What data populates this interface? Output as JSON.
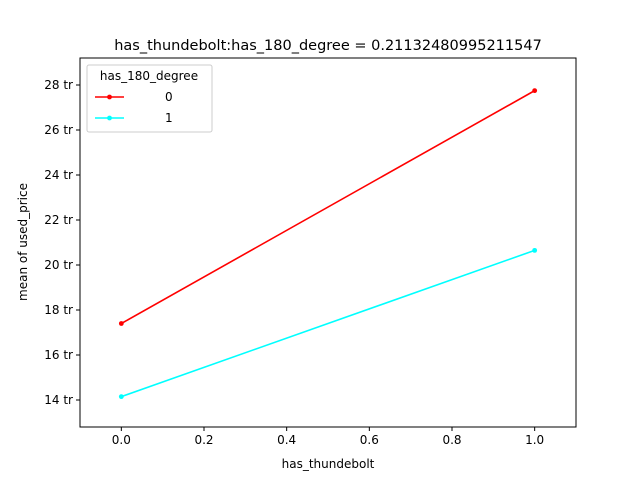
{
  "chart_data": {
    "type": "line",
    "title": "has_thundebolt:has_180_degree = 0.21132480995211547",
    "xlabel": "has_thundebolt",
    "ylabel": "mean of used_price",
    "xlim": [
      -0.1,
      1.1
    ],
    "ylim": [
      12.8,
      29.2
    ],
    "xticks": [
      0.0,
      0.2,
      0.4,
      0.6,
      0.8,
      1.0
    ],
    "xtick_labels": [
      "0.0",
      "0.2",
      "0.4",
      "0.6",
      "0.8",
      "1.0"
    ],
    "yticks": [
      14,
      16,
      18,
      20,
      22,
      24,
      26,
      28
    ],
    "ytick_labels": [
      "14 tr",
      "16 tr",
      "18 tr",
      "20 tr",
      "22 tr",
      "24 tr",
      "26 tr",
      "28 tr"
    ],
    "legend": {
      "title": "has_180_degree",
      "placement": "top-left"
    },
    "grid": false,
    "series": [
      {
        "name": "0",
        "color": "#ff0000",
        "x": [
          0,
          1
        ],
        "y": [
          17.4,
          27.75
        ]
      },
      {
        "name": "1",
        "color": "#00ffff",
        "x": [
          0,
          1
        ],
        "y": [
          14.15,
          20.65
        ]
      }
    ]
  }
}
